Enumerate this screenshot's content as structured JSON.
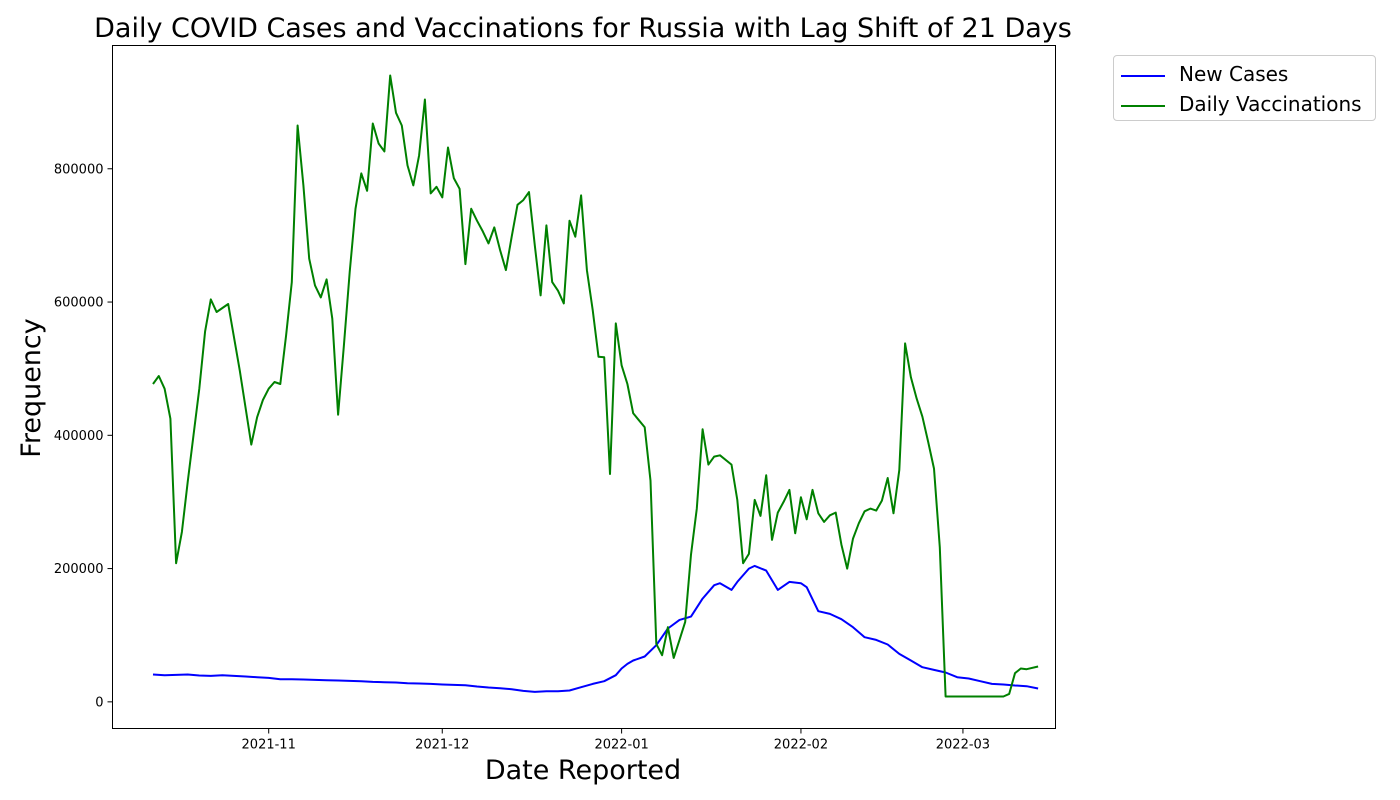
{
  "chart_data": {
    "type": "line",
    "title": "Daily COVID Cases and Vaccinations for Russia with Lag Shift of 21 Days",
    "xlabel": "Date Reported",
    "ylabel": "Frequency",
    "xlim": [
      "2021-10-05",
      "2022-03-17"
    ],
    "ylim": [
      -40000,
      985000
    ],
    "x_ticks": [
      {
        "date": "2021-11-01",
        "label": "2021-11"
      },
      {
        "date": "2021-12-01",
        "label": "2021-12"
      },
      {
        "date": "2022-01-01",
        "label": "2022-01"
      },
      {
        "date": "2022-02-01",
        "label": "2022-02"
      },
      {
        "date": "2022-03-01",
        "label": "2022-03"
      }
    ],
    "y_ticks": [
      {
        "value": 0,
        "label": "0"
      },
      {
        "value": 200000,
        "label": "200000"
      },
      {
        "value": 400000,
        "label": "400000"
      },
      {
        "value": 600000,
        "label": "600000"
      },
      {
        "value": 800000,
        "label": "800000"
      }
    ],
    "grid": false,
    "legend_position": "outside-top-right",
    "series": [
      {
        "name": "New Cases",
        "color": "#0000ff",
        "points": [
          [
            "2021-10-12",
            41000
          ],
          [
            "2021-10-14",
            40000
          ],
          [
            "2021-10-16",
            40500
          ],
          [
            "2021-10-18",
            41000
          ],
          [
            "2021-10-20",
            39500
          ],
          [
            "2021-10-22",
            39000
          ],
          [
            "2021-10-24",
            40000
          ],
          [
            "2021-10-26",
            39000
          ],
          [
            "2021-10-28",
            38000
          ],
          [
            "2021-10-30",
            37000
          ],
          [
            "2021-11-01",
            36000
          ],
          [
            "2021-11-03",
            34000
          ],
          [
            "2021-11-05",
            34000
          ],
          [
            "2021-11-07",
            33500
          ],
          [
            "2021-11-09",
            33000
          ],
          [
            "2021-11-11",
            32500
          ],
          [
            "2021-11-13",
            32000
          ],
          [
            "2021-11-15",
            31500
          ],
          [
            "2021-11-17",
            31000
          ],
          [
            "2021-11-19",
            30000
          ],
          [
            "2021-11-21",
            29500
          ],
          [
            "2021-11-23",
            29000
          ],
          [
            "2021-11-25",
            28000
          ],
          [
            "2021-11-27",
            27500
          ],
          [
            "2021-11-29",
            27000
          ],
          [
            "2021-12-01",
            26000
          ],
          [
            "2021-12-03",
            25500
          ],
          [
            "2021-12-05",
            25000
          ],
          [
            "2021-12-07",
            23000
          ],
          [
            "2021-12-09",
            21500
          ],
          [
            "2021-12-11",
            20500
          ],
          [
            "2021-12-13",
            19000
          ],
          [
            "2021-12-15",
            16500
          ],
          [
            "2021-12-17",
            15000
          ],
          [
            "2021-12-19",
            16000
          ],
          [
            "2021-12-21",
            16000
          ],
          [
            "2021-12-23",
            17000
          ],
          [
            "2021-12-25",
            22000
          ],
          [
            "2021-12-27",
            27000
          ],
          [
            "2021-12-29",
            31000
          ],
          [
            "2021-12-31",
            40000
          ],
          [
            "2022-01-01",
            50000
          ],
          [
            "2022-01-02",
            57000
          ],
          [
            "2022-01-03",
            62000
          ],
          [
            "2022-01-05",
            68000
          ],
          [
            "2022-01-07",
            85000
          ],
          [
            "2022-01-09",
            110000
          ],
          [
            "2022-01-11",
            123000
          ],
          [
            "2022-01-13",
            128000
          ],
          [
            "2022-01-15",
            155000
          ],
          [
            "2022-01-17",
            175000
          ],
          [
            "2022-01-18",
            178000
          ],
          [
            "2022-01-20",
            168000
          ],
          [
            "2022-01-21",
            180000
          ],
          [
            "2022-01-23",
            200000
          ],
          [
            "2022-01-24",
            204000
          ],
          [
            "2022-01-26",
            197000
          ],
          [
            "2022-01-28",
            168000
          ],
          [
            "2022-01-30",
            180000
          ],
          [
            "2022-02-01",
            178000
          ],
          [
            "2022-02-02",
            172000
          ],
          [
            "2022-02-04",
            136000
          ],
          [
            "2022-02-06",
            132000
          ],
          [
            "2022-02-08",
            124000
          ],
          [
            "2022-02-10",
            112000
          ],
          [
            "2022-02-12",
            97000
          ],
          [
            "2022-02-14",
            93000
          ],
          [
            "2022-02-16",
            86000
          ],
          [
            "2022-02-18",
            72000
          ],
          [
            "2022-02-20",
            62000
          ],
          [
            "2022-02-22",
            52000
          ],
          [
            "2022-02-24",
            48000
          ],
          [
            "2022-02-26",
            44000
          ],
          [
            "2022-02-28",
            37000
          ],
          [
            "2022-03-02",
            35000
          ],
          [
            "2022-03-04",
            31000
          ],
          [
            "2022-03-06",
            27000
          ],
          [
            "2022-03-08",
            26000
          ],
          [
            "2022-03-10",
            24500
          ],
          [
            "2022-03-12",
            23500
          ],
          [
            "2022-03-14",
            20000
          ]
        ]
      },
      {
        "name": "Daily Vaccinations",
        "color": "#008000",
        "points": [
          [
            "2021-10-12",
            477000
          ],
          [
            "2021-10-13",
            489000
          ],
          [
            "2021-10-14",
            470000
          ],
          [
            "2021-10-15",
            425000
          ],
          [
            "2021-10-16",
            208000
          ],
          [
            "2021-10-17",
            255000
          ],
          [
            "2021-10-18",
            330000
          ],
          [
            "2021-10-19",
            400000
          ],
          [
            "2021-10-20",
            470000
          ],
          [
            "2021-10-21",
            556000
          ],
          [
            "2021-10-22",
            604000
          ],
          [
            "2021-10-23",
            585000
          ],
          [
            "2021-10-25",
            597000
          ],
          [
            "2021-10-27",
            497000
          ],
          [
            "2021-10-29",
            386000
          ],
          [
            "2021-10-30",
            427000
          ],
          [
            "2021-10-31",
            453000
          ],
          [
            "2021-11-01",
            470000
          ],
          [
            "2021-11-02",
            480000
          ],
          [
            "2021-11-03",
            477000
          ],
          [
            "2021-11-04",
            550000
          ],
          [
            "2021-11-05",
            630000
          ],
          [
            "2021-11-06",
            865000
          ],
          [
            "2021-11-07",
            775000
          ],
          [
            "2021-11-08",
            665000
          ],
          [
            "2021-11-09",
            625000
          ],
          [
            "2021-11-10",
            607000
          ],
          [
            "2021-11-11",
            634000
          ],
          [
            "2021-11-12",
            575000
          ],
          [
            "2021-11-13",
            431000
          ],
          [
            "2021-11-14",
            535000
          ],
          [
            "2021-11-15",
            645000
          ],
          [
            "2021-11-16",
            740000
          ],
          [
            "2021-11-17",
            793000
          ],
          [
            "2021-11-18",
            767000
          ],
          [
            "2021-11-19",
            868000
          ],
          [
            "2021-11-20",
            838000
          ],
          [
            "2021-11-21",
            826000
          ],
          [
            "2021-11-22",
            940000
          ],
          [
            "2021-11-23",
            884000
          ],
          [
            "2021-11-24",
            865000
          ],
          [
            "2021-11-25",
            805000
          ],
          [
            "2021-11-26",
            775000
          ],
          [
            "2021-11-27",
            820000
          ],
          [
            "2021-11-28",
            904000
          ],
          [
            "2021-11-29",
            763000
          ],
          [
            "2021-11-30",
            773000
          ],
          [
            "2021-12-01",
            757000
          ],
          [
            "2021-12-02",
            832000
          ],
          [
            "2021-12-03",
            786000
          ],
          [
            "2021-12-04",
            770000
          ],
          [
            "2021-12-05",
            657000
          ],
          [
            "2021-12-06",
            740000
          ],
          [
            "2021-12-07",
            722000
          ],
          [
            "2021-12-08",
            706000
          ],
          [
            "2021-12-09",
            688000
          ],
          [
            "2021-12-10",
            712000
          ],
          [
            "2021-12-11",
            678000
          ],
          [
            "2021-12-12",
            648000
          ],
          [
            "2021-12-13",
            698000
          ],
          [
            "2021-12-14",
            746000
          ],
          [
            "2021-12-15",
            753000
          ],
          [
            "2021-12-16",
            765000
          ],
          [
            "2021-12-17",
            685000
          ],
          [
            "2021-12-18",
            610000
          ],
          [
            "2021-12-19",
            715000
          ],
          [
            "2021-12-20",
            630000
          ],
          [
            "2021-12-21",
            617000
          ],
          [
            "2021-12-22",
            598000
          ],
          [
            "2021-12-23",
            722000
          ],
          [
            "2021-12-24",
            698000
          ],
          [
            "2021-12-25",
            760000
          ],
          [
            "2021-12-26",
            648000
          ],
          [
            "2021-12-27",
            588000
          ],
          [
            "2021-12-28",
            518000
          ],
          [
            "2021-12-29",
            517000
          ],
          [
            "2021-12-30",
            342000
          ],
          [
            "2021-12-31",
            568000
          ],
          [
            "2022-01-01",
            505000
          ],
          [
            "2022-01-02",
            477000
          ],
          [
            "2022-01-03",
            433000
          ],
          [
            "2022-01-05",
            412000
          ],
          [
            "2022-01-06",
            332000
          ],
          [
            "2022-01-07",
            87000
          ],
          [
            "2022-01-08",
            70000
          ],
          [
            "2022-01-09",
            112000
          ],
          [
            "2022-01-10",
            66000
          ],
          [
            "2022-01-11",
            93000
          ],
          [
            "2022-01-12",
            120000
          ],
          [
            "2022-01-13",
            221000
          ],
          [
            "2022-01-14",
            290000
          ],
          [
            "2022-01-15",
            409000
          ],
          [
            "2022-01-16",
            356000
          ],
          [
            "2022-01-17",
            368000
          ],
          [
            "2022-01-18",
            370000
          ],
          [
            "2022-01-20",
            356000
          ],
          [
            "2022-01-21",
            303000
          ],
          [
            "2022-01-22",
            208000
          ],
          [
            "2022-01-23",
            222000
          ],
          [
            "2022-01-24",
            303000
          ],
          [
            "2022-01-25",
            279000
          ],
          [
            "2022-01-26",
            340000
          ],
          [
            "2022-01-27",
            243000
          ],
          [
            "2022-01-28",
            284000
          ],
          [
            "2022-01-29",
            300000
          ],
          [
            "2022-01-30",
            318000
          ],
          [
            "2022-01-31",
            253000
          ],
          [
            "2022-02-01",
            307000
          ],
          [
            "2022-02-02",
            274000
          ],
          [
            "2022-02-03",
            318000
          ],
          [
            "2022-02-04",
            283000
          ],
          [
            "2022-02-05",
            270000
          ],
          [
            "2022-02-06",
            280000
          ],
          [
            "2022-02-07",
            284000
          ],
          [
            "2022-02-08",
            236000
          ],
          [
            "2022-02-09",
            200000
          ],
          [
            "2022-02-10",
            245000
          ],
          [
            "2022-02-11",
            268000
          ],
          [
            "2022-02-12",
            286000
          ],
          [
            "2022-02-13",
            290000
          ],
          [
            "2022-02-14",
            287000
          ],
          [
            "2022-02-15",
            302000
          ],
          [
            "2022-02-16",
            336000
          ],
          [
            "2022-02-17",
            283000
          ],
          [
            "2022-02-18",
            348000
          ],
          [
            "2022-02-19",
            538000
          ],
          [
            "2022-02-20",
            487000
          ],
          [
            "2022-02-21",
            455000
          ],
          [
            "2022-02-22",
            428000
          ],
          [
            "2022-02-23",
            390000
          ],
          [
            "2022-02-24",
            350000
          ],
          [
            "2022-02-25",
            232000
          ],
          [
            "2022-02-26",
            8000
          ],
          [
            "2022-03-08",
            8000
          ],
          [
            "2022-03-09",
            12000
          ],
          [
            "2022-03-10",
            43000
          ],
          [
            "2022-03-11",
            50000
          ],
          [
            "2022-03-12",
            49000
          ],
          [
            "2022-03-14",
            53000
          ]
        ]
      }
    ]
  }
}
